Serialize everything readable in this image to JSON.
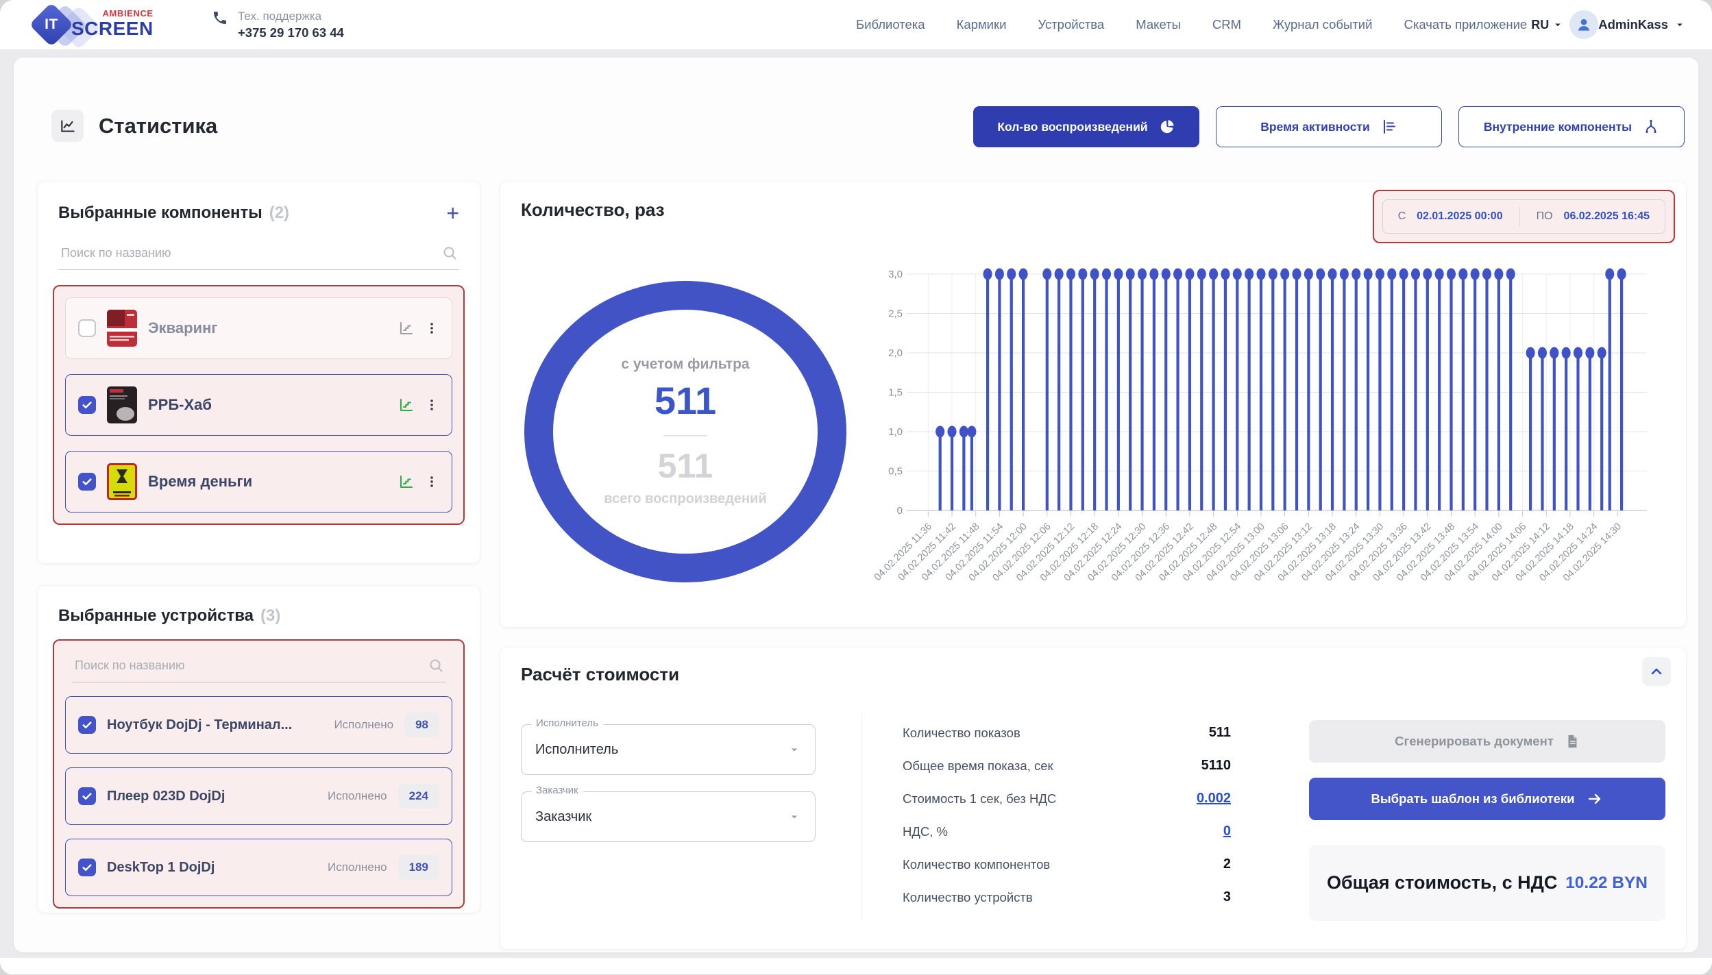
{
  "header": {
    "logo": {
      "it": "IT",
      "ambience": "AMBIENCE",
      "screen": "SCREEN"
    },
    "support": {
      "label": "Тех. поддержка",
      "phone": "+375 29 170 63 44"
    },
    "nav": [
      "Библиотека",
      "Кармики",
      "Устройства",
      "Макеты",
      "CRM",
      "Журнал событий",
      "Скачать приложение"
    ],
    "lang": "RU",
    "user": "AdminKass"
  },
  "page": {
    "title": "Статистика",
    "view_buttons": [
      {
        "label": "Кол-во воспроизведений",
        "icon": "pie-chart-icon",
        "active": true
      },
      {
        "label": "Время активности",
        "icon": "bar-chart-icon",
        "active": false
      },
      {
        "label": "Внутренние компоненты",
        "icon": "split-icon",
        "active": false
      }
    ]
  },
  "components_panel": {
    "title": "Выбранные компоненты",
    "count": "(2)",
    "add_label": "+",
    "search_placeholder": "Поиск по названию",
    "items": [
      {
        "name": "Экваринг",
        "checked": false,
        "thumb": "thumb-ekvaring",
        "stats_icon": "gray"
      },
      {
        "name": "РРБ-Хаб",
        "checked": true,
        "thumb": "thumb-rrb",
        "stats_icon": "green"
      },
      {
        "name": "Время деньги",
        "checked": true,
        "thumb": "thumb-vremya",
        "stats_icon": "green"
      }
    ]
  },
  "devices_panel": {
    "title": "Выбранные устройства",
    "count": "(3)",
    "search_placeholder": "Поиск по названию",
    "executed_label": "Исполнено",
    "items": [
      {
        "name": "Ноутбук DojDj - Терминал...",
        "checked": true,
        "executed": "98"
      },
      {
        "name": "Плеер 023D DojDj",
        "checked": true,
        "executed": "224"
      },
      {
        "name": "DeskTop 1 DojDj",
        "checked": true,
        "executed": "189"
      }
    ]
  },
  "chart_panel": {
    "title": "Количество, раз",
    "date_from_label": "С",
    "date_from": "02.01.2025 00:00",
    "date_to_label": "ПО",
    "date_to": "06.02.2025 16:45",
    "donut": {
      "filtered_label": "с учетом фильтра",
      "filtered_value": "511",
      "total_value": "511",
      "total_label": "всего воспроизведений"
    }
  },
  "chart_data": [
    {
      "type": "pie",
      "subtype": "donut-full-ring",
      "title": "Количество, раз",
      "filtered_label": "с учетом фильтра",
      "filtered_value": 511,
      "total_label": "всего воспроизведений",
      "total_value": 511,
      "ring_color": "#4254c5"
    },
    {
      "type": "scatter",
      "subtype": "lollipop-stems",
      "date": "04.02.2025",
      "ylim": [
        0,
        3
      ],
      "grid": true,
      "y_ticks": [
        "3,0",
        "2,5",
        "2,0",
        "1,5",
        "1,0",
        "0,5",
        "0"
      ],
      "x_ticks": [
        "11:36",
        "11:42",
        "11:48",
        "11:54",
        "12:00",
        "12:06",
        "12:12",
        "12:18",
        "12:24",
        "12:30",
        "12:36",
        "12:42",
        "12:48",
        "12:54",
        "13:00",
        "13:06",
        "13:12",
        "13:18",
        "13:24",
        "13:30",
        "13:36",
        "13:42",
        "13:48",
        "13:54",
        "14:00",
        "14:06",
        "14:12",
        "14:18",
        "14:24",
        "14:30"
      ],
      "points": [
        [
          "11:39",
          1
        ],
        [
          "11:42",
          1
        ],
        [
          "11:45",
          1
        ],
        [
          "11:47",
          1
        ],
        [
          "11:51",
          3
        ],
        [
          "11:54",
          3
        ],
        [
          "11:57",
          3
        ],
        [
          "12:00",
          3
        ],
        [
          "12:06",
          3
        ],
        [
          "12:09",
          3
        ],
        [
          "12:12",
          3
        ],
        [
          "12:15",
          3
        ],
        [
          "12:18",
          3
        ],
        [
          "12:21",
          3
        ],
        [
          "12:24",
          3
        ],
        [
          "12:27",
          3
        ],
        [
          "12:30",
          3
        ],
        [
          "12:33",
          3
        ],
        [
          "12:36",
          3
        ],
        [
          "12:39",
          3
        ],
        [
          "12:42",
          3
        ],
        [
          "12:45",
          3
        ],
        [
          "12:48",
          3
        ],
        [
          "12:51",
          3
        ],
        [
          "12:54",
          3
        ],
        [
          "12:57",
          3
        ],
        [
          "13:00",
          3
        ],
        [
          "13:03",
          3
        ],
        [
          "13:06",
          3
        ],
        [
          "13:09",
          3
        ],
        [
          "13:12",
          3
        ],
        [
          "13:15",
          3
        ],
        [
          "13:18",
          3
        ],
        [
          "13:21",
          3
        ],
        [
          "13:24",
          3
        ],
        [
          "13:27",
          3
        ],
        [
          "13:30",
          3
        ],
        [
          "13:33",
          3
        ],
        [
          "13:36",
          3
        ],
        [
          "13:39",
          3
        ],
        [
          "13:42",
          3
        ],
        [
          "13:45",
          3
        ],
        [
          "13:48",
          3
        ],
        [
          "13:51",
          3
        ],
        [
          "13:54",
          3
        ],
        [
          "13:57",
          3
        ],
        [
          "14:00",
          3
        ],
        [
          "14:03",
          3
        ],
        [
          "14:08",
          2
        ],
        [
          "14:11",
          2
        ],
        [
          "14:14",
          2
        ],
        [
          "14:17",
          2
        ],
        [
          "14:20",
          2
        ],
        [
          "14:23",
          2
        ],
        [
          "14:26",
          2
        ],
        [
          "14:28",
          3
        ],
        [
          "14:31",
          3
        ]
      ],
      "stem_color": "#3f53c6"
    }
  ],
  "cost_panel": {
    "title": "Расчёт стоимости",
    "selects": [
      {
        "label": "Исполнитель",
        "value": "Исполнитель"
      },
      {
        "label": "Заказчик",
        "value": "Заказчик"
      }
    ],
    "stats": [
      {
        "label": "Количество показов",
        "value": "511",
        "link": false
      },
      {
        "label": "Общее время показа, сек",
        "value": "5110",
        "link": false
      },
      {
        "label": "Стоимость 1 сек, без НДС",
        "value": "0.002",
        "link": true
      },
      {
        "label": "НДС, %",
        "value": "0",
        "link": true
      },
      {
        "label": "Количество компонентов",
        "value": "2",
        "link": false
      },
      {
        "label": "Количество устройств",
        "value": "3",
        "link": false
      }
    ],
    "generate_button": "Сгенерировать документ",
    "template_button": "Выбрать шаблон из библиотеки",
    "total_label": "Общая стоимость, с НДС",
    "total_value": "10.22 BYN"
  },
  "colors": {
    "primary": "#2f3db0",
    "accent_blue": "#4355c9",
    "link_blue": "#2b50cc",
    "donut_ring": "#4254c5",
    "stem_blue": "#3f53c6",
    "red_border": "#b23a3a",
    "pink_bg": "#f9eded",
    "green_icon": "#2fae47"
  }
}
